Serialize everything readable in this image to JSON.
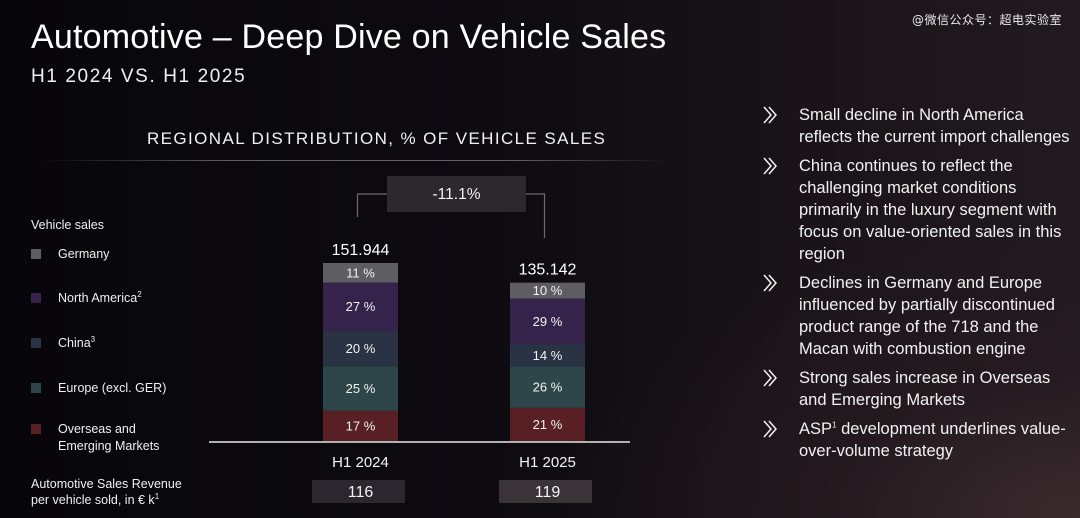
{
  "watermark": "@微信公众号：超电实验室",
  "header": {
    "title": "Automotive – Deep Dive on Vehicle Sales",
    "subtitle": "H1 2024 VS. H1 2025"
  },
  "legend": {
    "heading": "Vehicle sales",
    "items": [
      {
        "label": "Germany",
        "sup": "",
        "color": "#5e5d62"
      },
      {
        "label": "North America",
        "sup": "2",
        "color": "#35234c"
      },
      {
        "label": "China",
        "sup": "3",
        "color": "#2a3344"
      },
      {
        "label": "Europe (excl. GER)",
        "sup": "",
        "color": "#2e4649"
      },
      {
        "label": "Overseas and",
        "label2": "Emerging Markets",
        "sup": "",
        "color": "#581f24"
      }
    ]
  },
  "revenue_label": {
    "line1": "Automotive Sales Revenue",
    "line2": "per vehicle sold, in € k",
    "sup": "1"
  },
  "chart_data": {
    "type": "bar",
    "stacked": true,
    "title": "REGIONAL DISTRIBUTION, % OF VEHICLE SALES",
    "categories": [
      "H1 2024",
      "H1 2025"
    ],
    "totals": [
      "151.944",
      "135.142"
    ],
    "change_label": "-11.1%",
    "unit_suffix": " %",
    "series": [
      {
        "name": "Germany",
        "color": "#5e5d62",
        "values": [
          11,
          10
        ]
      },
      {
        "name": "North America",
        "color": "#35234c",
        "values": [
          27,
          29
        ]
      },
      {
        "name": "China",
        "color": "#2a3344",
        "values": [
          20,
          14
        ]
      },
      {
        "name": "Europe (excl. GER)",
        "color": "#2e4649",
        "values": [
          25,
          26
        ]
      },
      {
        "name": "Overseas and Emerging Markets",
        "color": "#581f24",
        "values": [
          17,
          21
        ]
      }
    ],
    "revenue_per_vehicle": {
      "label": "Automotive Sales Revenue per vehicle sold, in € k",
      "values": [
        116,
        119
      ]
    }
  },
  "bullets": [
    {
      "text": "Small decline in North America reflects the current import challenges"
    },
    {
      "text": "China continues to reflect the challenging market conditions primarily in the luxury segment with focus on value-oriented sales in this region"
    },
    {
      "text": "Declines in Germany and Europe influenced by partially discontinued product range of the 718 and the Macan with combustion engine"
    },
    {
      "text": "Strong sales increase in Overseas and Emerging Markets"
    },
    {
      "pre": "ASP",
      "sup": "1",
      "text": " development underlines value-over-volume strategy"
    }
  ]
}
